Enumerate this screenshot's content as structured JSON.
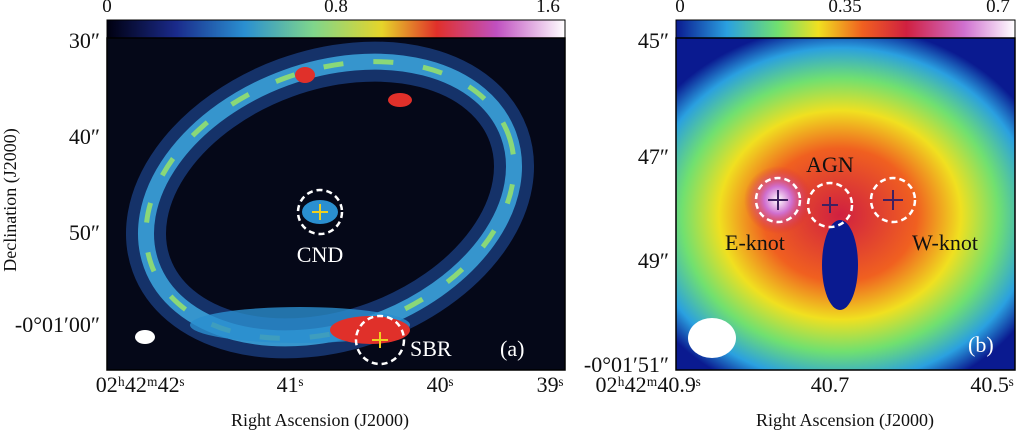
{
  "panel_a": {
    "colorbar_ticks": [
      "0",
      "0.8",
      "1.6"
    ],
    "y_ticks": [
      "30″",
      "40″",
      "50″",
      "-0°01′00″"
    ],
    "x_ticks": [
      "02ʰ42ᵐ42ˢ",
      "41ˢ",
      "40ˢ",
      "39ˢ"
    ],
    "x_label": "Right Ascension (J2000)",
    "y_label": "Declination (J2000)",
    "annotations": [
      "CND",
      "SBR"
    ],
    "panel_label": "(a)"
  },
  "panel_b": {
    "colorbar_ticks": [
      "0",
      "0.35",
      "0.7"
    ],
    "y_ticks": [
      "45″",
      "47″",
      "49″",
      "-0°01′51″"
    ],
    "x_ticks": [
      "02ʰ42ᵐ40.9ˢ",
      "40.7",
      "40.5ˢ"
    ],
    "x_label": "Right Ascension (J2000)",
    "annotations": [
      "AGN",
      "E-knot",
      "W-knot"
    ],
    "panel_label": "(b)"
  }
}
